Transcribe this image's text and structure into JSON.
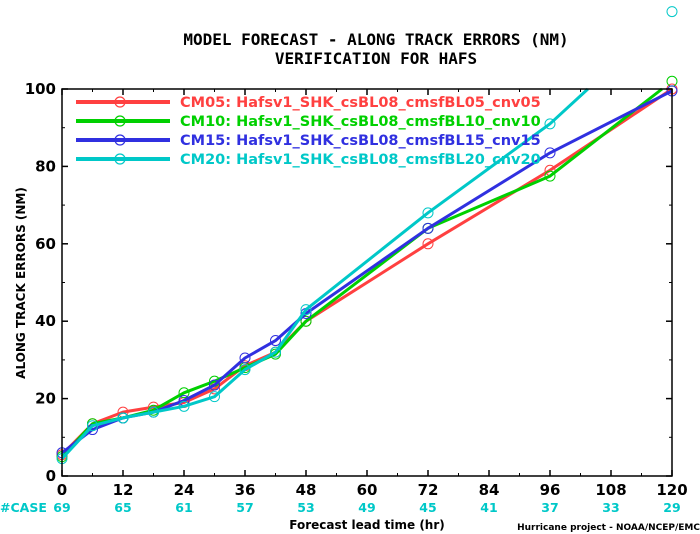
{
  "chart_data": {
    "type": "line",
    "title_line1": "MODEL FORECAST - ALONG TRACK ERRORS (NM)",
    "title_line2": "VERIFICATION FOR HAFS",
    "xlabel": "Forecast lead time (hr)",
    "ylabel": "ALONG TRACK ERRORS (NM)",
    "xlim": [
      0,
      120
    ],
    "ylim": [
      0,
      100
    ],
    "x_ticks": [
      "0",
      "12",
      "24",
      "36",
      "48",
      "60",
      "72",
      "84",
      "96",
      "108",
      "120"
    ],
    "y_ticks": [
      "0",
      "20",
      "40",
      "60",
      "80",
      "100"
    ],
    "case_label": "#CASE",
    "case_counts": [
      "69",
      "65",
      "61",
      "57",
      "53",
      "49",
      "45",
      "41",
      "37",
      "33",
      "29"
    ],
    "credit": "Hurricane project - NOAA/NCEP/EMC",
    "legend_position": "top-left",
    "x": [
      0,
      6,
      12,
      18,
      24,
      30,
      36,
      42,
      48,
      72,
      96,
      120
    ],
    "series": [
      {
        "name": "CM05: Hafsv1_SHK_csBL08_cmsfBL05_cnv05",
        "color": "#ff4040",
        "points": [
          [
            0,
            5.5
          ],
          [
            6,
            13.5
          ],
          [
            12,
            16.5
          ],
          [
            18,
            17.8
          ],
          [
            24,
            19
          ],
          [
            30,
            22.5
          ],
          [
            36,
            28.5
          ],
          [
            42,
            32
          ],
          [
            48,
            40
          ],
          [
            72,
            60
          ],
          [
            96,
            79
          ],
          [
            120,
            100
          ]
        ]
      },
      {
        "name": "CM10: Hafsv1_SHK_csBL08_cmsfBL10_cnv10",
        "color": "#00d000",
        "points": [
          [
            0,
            5
          ],
          [
            6,
            13.5
          ],
          [
            12,
            15
          ],
          [
            18,
            17
          ],
          [
            24,
            21.5
          ],
          [
            30,
            24.5
          ],
          [
            36,
            28
          ],
          [
            42,
            31.5
          ],
          [
            48,
            40
          ],
          [
            72,
            64
          ],
          [
            96,
            77.5
          ],
          [
            120,
            102
          ]
        ]
      },
      {
        "name": "CM15: Hafsv1_SHK_csBL08_cmsfBL15_cnv15",
        "color": "#3030e0",
        "points": [
          [
            0,
            6
          ],
          [
            6,
            12
          ],
          [
            12,
            15
          ],
          [
            18,
            16.5
          ],
          [
            24,
            19.5
          ],
          [
            30,
            23.5
          ],
          [
            36,
            30.5
          ],
          [
            42,
            35
          ],
          [
            48,
            42
          ],
          [
            72,
            64
          ],
          [
            96,
            83.5
          ],
          [
            120,
            99.5
          ]
        ]
      },
      {
        "name": "CM20: Hafsv1_SHK_csBL08_cmsfBL20_cnv20",
        "color": "#00c8c8",
        "points": [
          [
            0,
            4.5
          ],
          [
            6,
            13
          ],
          [
            12,
            15
          ],
          [
            18,
            16.5
          ],
          [
            24,
            18
          ],
          [
            30,
            20.5
          ],
          [
            36,
            27.5
          ],
          [
            42,
            32
          ],
          [
            48,
            43
          ],
          [
            72,
            68
          ],
          [
            96,
            91
          ],
          [
            120,
            120
          ]
        ]
      }
    ]
  }
}
